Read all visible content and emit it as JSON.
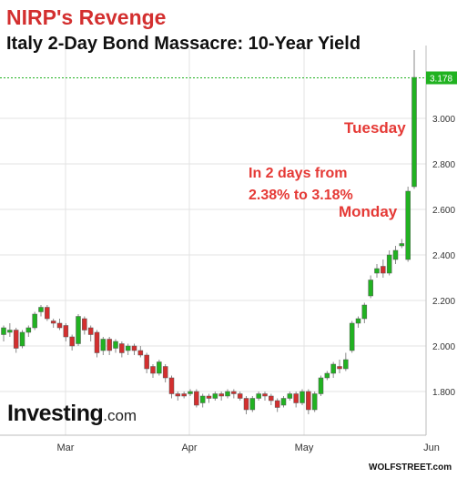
{
  "title": "NIRP's Revenge",
  "subtitle": "Italy 2-Day Bond Massacre: 10-Year Yield",
  "annotations": {
    "tuesday": "Tuesday",
    "monday": "Monday",
    "note_line1": "In 2 days from",
    "note_line2": "2.38% to 3.18%"
  },
  "watermark": {
    "brand": "Investing",
    "suffix": ".com"
  },
  "credit": "WOLFSTREET.com",
  "colors": {
    "up": "#21b221",
    "down": "#d32f2f",
    "annotation": "#e53935",
    "reference": "#21b221"
  },
  "chart_data": {
    "type": "candlestick",
    "y_ticks": [
      "1.800",
      "2.000",
      "2.200",
      "2.400",
      "2.600",
      "2.800",
      "3.000"
    ],
    "y_tick_values": [
      1.8,
      2.0,
      2.2,
      2.4,
      2.6,
      2.8,
      3.0
    ],
    "ylim": [
      1.6,
      3.35
    ],
    "x_ticks": [
      "Mar",
      "Apr",
      "May",
      "Jun"
    ],
    "last_value_label": "3.178",
    "last_value": 3.178,
    "grid": true,
    "candles": [
      [
        2.05,
        2.08,
        2.02,
        2.09
      ],
      [
        2.06,
        2.07,
        2.04,
        2.1
      ],
      [
        2.07,
        1.99,
        1.97,
        2.08
      ],
      [
        2.0,
        2.06,
        1.99,
        2.07
      ],
      [
        2.06,
        2.08,
        2.04,
        2.09
      ],
      [
        2.08,
        2.14,
        2.07,
        2.15
      ],
      [
        2.15,
        2.17,
        2.13,
        2.18
      ],
      [
        2.17,
        2.12,
        2.11,
        2.18
      ],
      [
        2.11,
        2.1,
        2.08,
        2.12
      ],
      [
        2.1,
        2.08,
        2.07,
        2.12
      ],
      [
        2.09,
        2.04,
        2.02,
        2.1
      ],
      [
        2.04,
        2.0,
        1.98,
        2.05
      ],
      [
        2.01,
        2.13,
        2.0,
        2.14
      ],
      [
        2.12,
        2.07,
        2.05,
        2.13
      ],
      [
        2.08,
        2.05,
        2.02,
        2.09
      ],
      [
        2.06,
        1.97,
        1.95,
        2.07
      ],
      [
        1.98,
        2.03,
        1.96,
        2.04
      ],
      [
        2.03,
        1.98,
        1.96,
        2.04
      ],
      [
        1.99,
        2.02,
        1.97,
        2.03
      ],
      [
        2.01,
        1.97,
        1.95,
        2.02
      ],
      [
        1.98,
        2.0,
        1.96,
        2.01
      ],
      [
        2.0,
        1.98,
        1.96,
        2.01
      ],
      [
        1.98,
        1.96,
        1.95,
        2.0
      ],
      [
        1.96,
        1.9,
        1.88,
        1.97
      ],
      [
        1.91,
        1.88,
        1.86,
        1.92
      ],
      [
        1.88,
        1.93,
        1.87,
        1.94
      ],
      [
        1.91,
        1.86,
        1.84,
        1.92
      ],
      [
        1.86,
        1.79,
        1.77,
        1.87
      ],
      [
        1.79,
        1.78,
        1.76,
        1.8
      ],
      [
        1.79,
        1.78,
        1.77,
        1.8
      ],
      [
        1.79,
        1.8,
        1.78,
        1.81
      ],
      [
        1.8,
        1.74,
        1.73,
        1.81
      ],
      [
        1.75,
        1.78,
        1.73,
        1.79
      ],
      [
        1.78,
        1.77,
        1.75,
        1.79
      ],
      [
        1.77,
        1.79,
        1.76,
        1.8
      ],
      [
        1.79,
        1.78,
        1.76,
        1.8
      ],
      [
        1.78,
        1.8,
        1.77,
        1.81
      ],
      [
        1.8,
        1.79,
        1.77,
        1.81
      ],
      [
        1.79,
        1.77,
        1.76,
        1.8
      ],
      [
        1.77,
        1.72,
        1.7,
        1.78
      ],
      [
        1.72,
        1.77,
        1.71,
        1.78
      ],
      [
        1.77,
        1.79,
        1.76,
        1.8
      ],
      [
        1.79,
        1.78,
        1.76,
        1.8
      ],
      [
        1.78,
        1.76,
        1.74,
        1.79
      ],
      [
        1.76,
        1.73,
        1.71,
        1.77
      ],
      [
        1.74,
        1.77,
        1.73,
        1.78
      ],
      [
        1.77,
        1.79,
        1.76,
        1.8
      ],
      [
        1.79,
        1.75,
        1.73,
        1.8
      ],
      [
        1.75,
        1.8,
        1.74,
        1.81
      ],
      [
        1.8,
        1.72,
        1.7,
        1.81
      ],
      [
        1.72,
        1.79,
        1.71,
        1.8
      ],
      [
        1.79,
        1.86,
        1.78,
        1.87
      ],
      [
        1.86,
        1.88,
        1.85,
        1.89
      ],
      [
        1.88,
        1.92,
        1.86,
        1.93
      ],
      [
        1.91,
        1.9,
        1.88,
        1.94
      ],
      [
        1.9,
        1.94,
        1.89,
        1.97
      ],
      [
        1.98,
        2.1,
        1.97,
        2.11
      ],
      [
        2.1,
        2.12,
        2.08,
        2.13
      ],
      [
        2.12,
        2.18,
        2.1,
        2.19
      ],
      [
        2.22,
        2.29,
        2.21,
        2.31
      ],
      [
        2.32,
        2.34,
        2.3,
        2.36
      ],
      [
        2.35,
        2.32,
        2.3,
        2.38
      ],
      [
        2.32,
        2.4,
        2.31,
        2.42
      ],
      [
        2.38,
        2.42,
        2.36,
        2.44
      ],
      [
        2.44,
        2.45,
        2.43,
        2.47
      ],
      [
        2.38,
        2.68,
        2.37,
        2.7
      ],
      [
        2.7,
        3.18,
        2.69,
        3.3
      ]
    ]
  }
}
